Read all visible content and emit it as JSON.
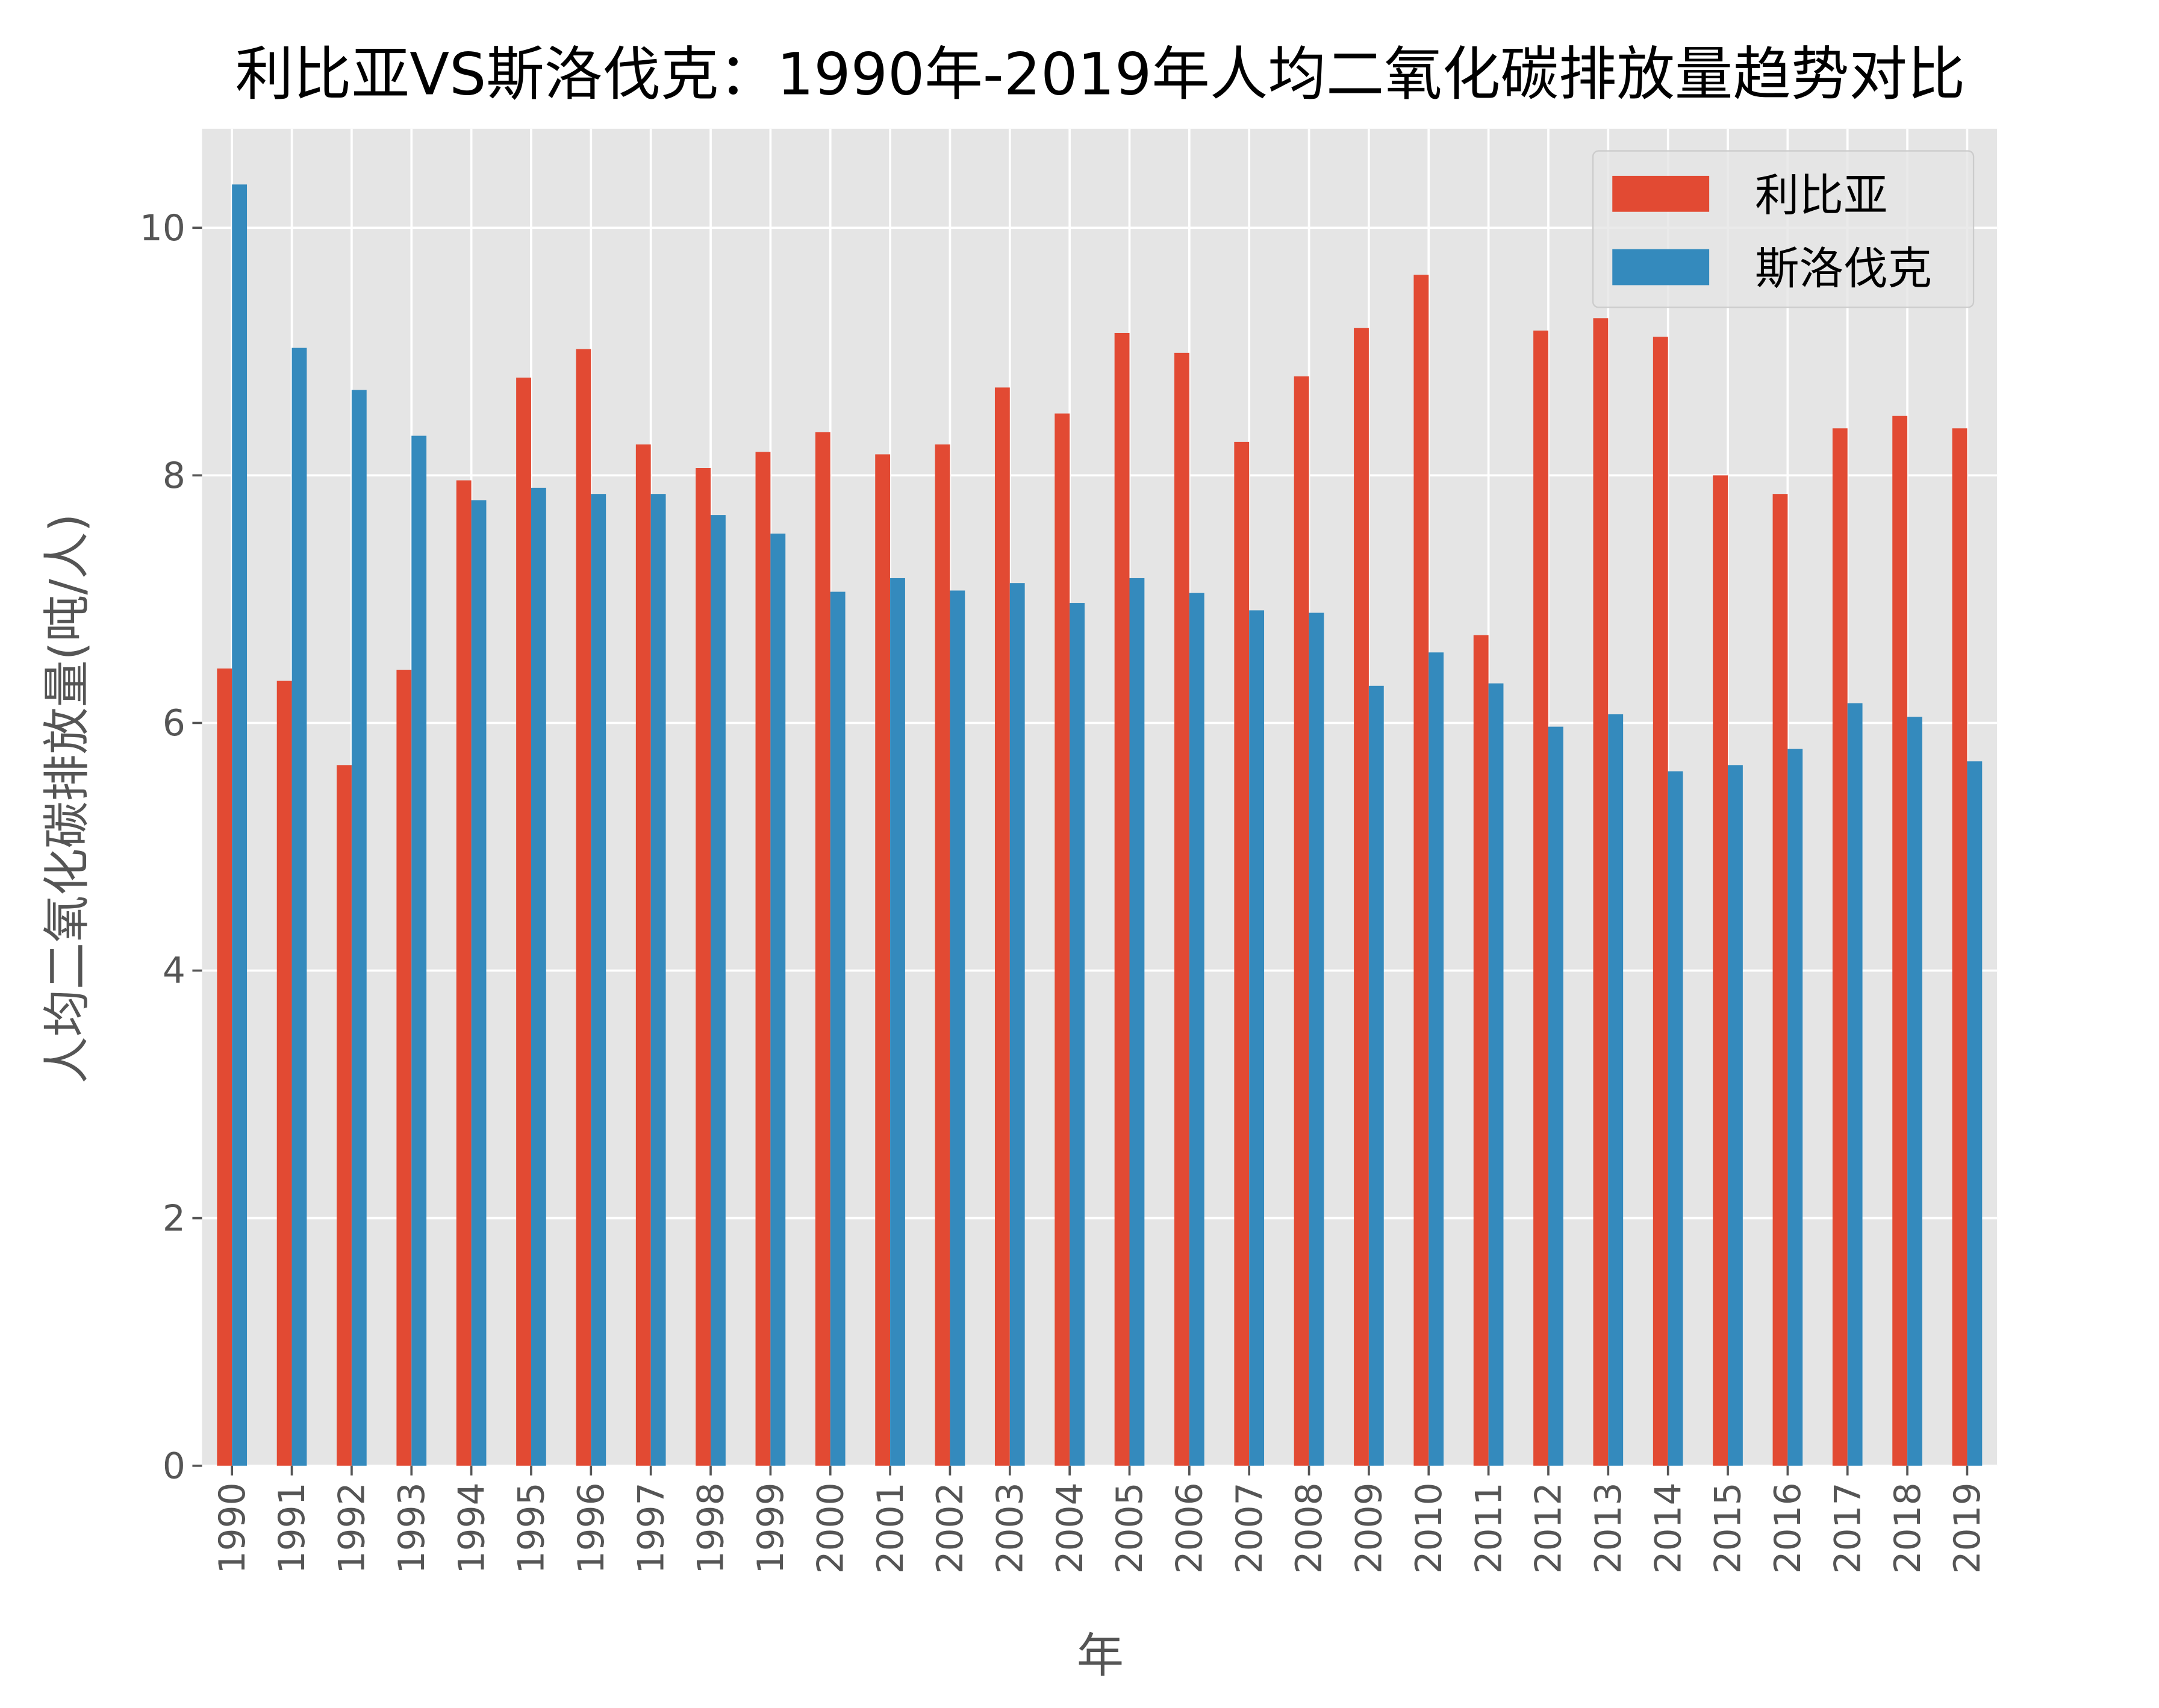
{
  "chart_data": {
    "type": "bar",
    "title": "利比亚VS斯洛伐克：1990年-2019年人均二氧化碳排放量趋势对比",
    "xlabel": "年",
    "ylabel": "人均二氧化碳排放量(吨/人)",
    "ylim": [
      0,
      10.8
    ],
    "yticks": [
      0,
      2,
      4,
      6,
      8,
      10
    ],
    "grid": true,
    "legend_position": "top-right",
    "categories": [
      "1990",
      "1991",
      "1992",
      "1993",
      "1994",
      "1995",
      "1996",
      "1997",
      "1998",
      "1999",
      "2000",
      "2001",
      "2002",
      "2003",
      "2004",
      "2005",
      "2006",
      "2007",
      "2008",
      "2009",
      "2010",
      "2011",
      "2012",
      "2013",
      "2014",
      "2015",
      "2016",
      "2017",
      "2018",
      "2019"
    ],
    "series": [
      {
        "name": "利比亚",
        "color": "#E24A33",
        "values": [
          6.44,
          6.34,
          5.66,
          6.43,
          7.96,
          8.79,
          9.02,
          8.25,
          8.06,
          8.19,
          8.35,
          8.17,
          8.25,
          8.71,
          8.5,
          9.15,
          8.99,
          8.27,
          8.8,
          9.19,
          9.62,
          6.71,
          9.17,
          9.27,
          9.12,
          8.0,
          7.85,
          8.38,
          8.48,
          8.38
        ]
      },
      {
        "name": "斯洛伐克",
        "color": "#348ABD",
        "values": [
          10.35,
          9.03,
          8.69,
          8.32,
          7.8,
          7.9,
          7.85,
          7.85,
          7.68,
          7.53,
          7.06,
          7.17,
          7.07,
          7.13,
          6.97,
          7.17,
          7.05,
          6.91,
          6.89,
          6.3,
          6.57,
          6.32,
          5.97,
          6.07,
          5.61,
          5.66,
          5.79,
          6.16,
          6.05,
          5.69
        ]
      }
    ]
  }
}
